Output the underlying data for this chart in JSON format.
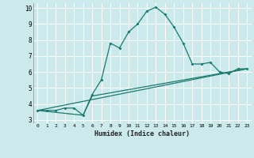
{
  "xlabel": "Humidex (Indice chaleur)",
  "xlim": [
    -0.5,
    23.5
  ],
  "ylim": [
    2.8,
    10.3
  ],
  "yticks": [
    3,
    4,
    5,
    6,
    7,
    8,
    9,
    10
  ],
  "xticks": [
    0,
    1,
    2,
    3,
    4,
    5,
    6,
    7,
    8,
    9,
    10,
    11,
    12,
    13,
    14,
    15,
    16,
    17,
    18,
    19,
    20,
    21,
    22,
    23
  ],
  "bg_color": "#cce9ec",
  "grid_color": "#ffffff",
  "line_color": "#1a7a6e",
  "series1_x": [
    0,
    1,
    2,
    3,
    4,
    5,
    6,
    7,
    8,
    9,
    10,
    11,
    12,
    13,
    14,
    15,
    16,
    17,
    18,
    19,
    20,
    21,
    22,
    23
  ],
  "series1_y": [
    3.6,
    3.6,
    3.6,
    3.75,
    3.75,
    3.3,
    4.6,
    5.5,
    7.8,
    7.5,
    8.5,
    9.0,
    9.8,
    10.05,
    9.6,
    8.8,
    7.8,
    6.5,
    6.5,
    6.6,
    6.0,
    5.9,
    6.2,
    6.2
  ],
  "series2_x": [
    0,
    5,
    6,
    23
  ],
  "series2_y": [
    3.6,
    3.3,
    4.5,
    6.2
  ],
  "series3_x": [
    0,
    23
  ],
  "series3_y": [
    3.6,
    6.2
  ]
}
